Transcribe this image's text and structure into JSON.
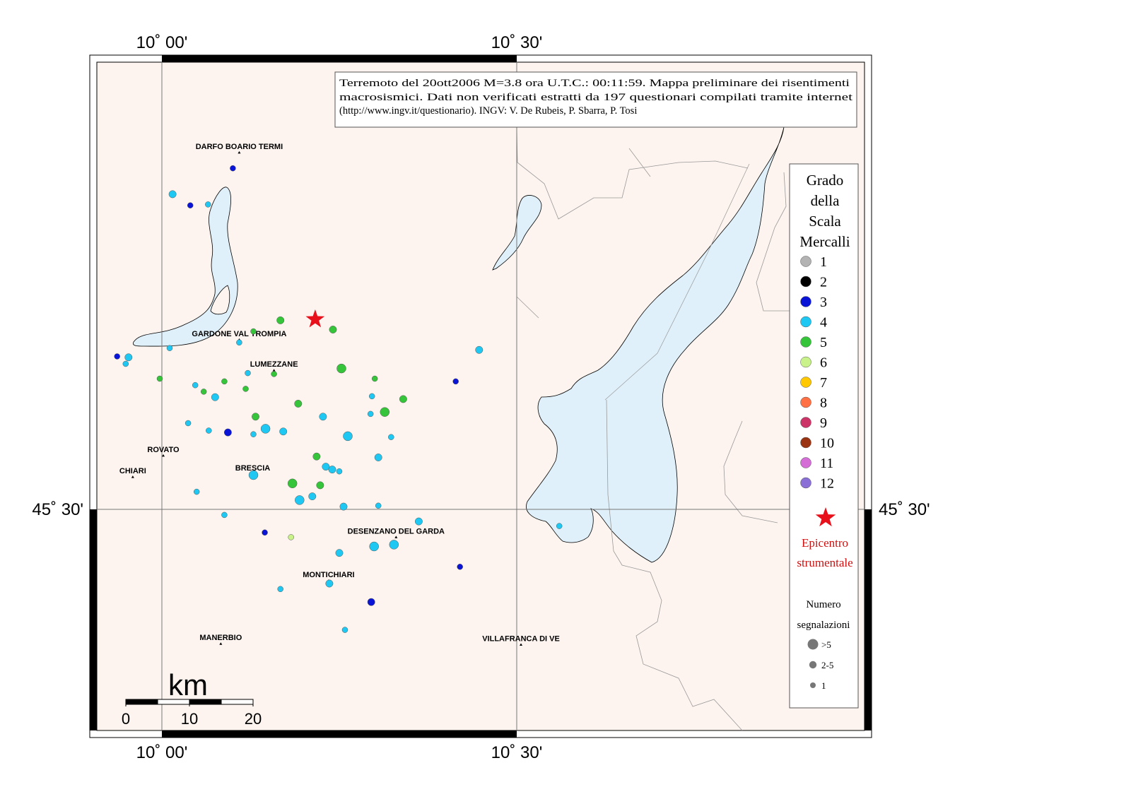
{
  "note_lines": [
    "Terremoto del 20ott2006 M=3.8 ora U.T.C.: 00:11:59.  Mappa preliminare dei risentimenti",
    "macrosismici.  Dati non verificati estratti da 197 questionari compilati tramite internet",
    "(http://www.ingv.it/questionario).  INGV: V.  De Rubeis, P.  Sbarra, P.  Tosi"
  ],
  "coords": {
    "lon_left": "10˚ 00'",
    "lon_right": "10˚ 30'",
    "lat": "45˚ 30'"
  },
  "towns": [
    {
      "name": "DARFO BOARIO TERMI",
      "lon": 10.109,
      "lat": 45.885
    },
    {
      "name": "GARDONE VAL TROMPIA",
      "lon": 10.109,
      "lat": 45.683
    },
    {
      "name": "LUMEZZANE",
      "lon": 10.158,
      "lat": 45.65
    },
    {
      "name": "ROVATO",
      "lon": 10.002,
      "lat": 45.558
    },
    {
      "name": "CHIARI",
      "lon": 9.959,
      "lat": 45.535
    },
    {
      "name": "BRESCIA",
      "lon": 10.128,
      "lat": 45.538
    },
    {
      "name": "DESENZANO DEL GARDA",
      "lon": 10.33,
      "lat": 45.47
    },
    {
      "name": "MONTICHIARI",
      "lon": 10.235,
      "lat": 45.423
    },
    {
      "name": "MANERBIO",
      "lon": 10.083,
      "lat": 45.355
    },
    {
      "name": "VILLAFRANCA DI VE",
      "lon": 10.506,
      "lat": 45.354
    }
  ],
  "epicenter": {
    "lon": 10.216,
    "lat": 45.705
  },
  "observations": [
    {
      "lon": 10.1,
      "lat": 45.868,
      "mcs": 3,
      "n": 1
    },
    {
      "lon": 10.015,
      "lat": 45.84,
      "mcs": 4,
      "n": 2
    },
    {
      "lon": 10.04,
      "lat": 45.828,
      "mcs": 3,
      "n": 1
    },
    {
      "lon": 10.065,
      "lat": 45.829,
      "mcs": 4,
      "n": 1
    },
    {
      "lon": 10.167,
      "lat": 45.704,
      "mcs": 5,
      "n": 2
    },
    {
      "lon": 10.129,
      "lat": 45.692,
      "mcs": 5,
      "n": 1
    },
    {
      "lon": 10.241,
      "lat": 45.694,
      "mcs": 5,
      "n": 2
    },
    {
      "lon": 10.109,
      "lat": 45.68,
      "mcs": 4,
      "n": 1
    },
    {
      "lon": 10.011,
      "lat": 45.674,
      "mcs": 4,
      "n": 1
    },
    {
      "lon": 9.937,
      "lat": 45.665,
      "mcs": 3,
      "n": 1
    },
    {
      "lon": 9.953,
      "lat": 45.664,
      "mcs": 4,
      "n": 2
    },
    {
      "lon": 9.949,
      "lat": 45.657,
      "mcs": 4,
      "n": 1
    },
    {
      "lon": 9.997,
      "lat": 45.641,
      "mcs": 5,
      "n": 1
    },
    {
      "lon": 10.047,
      "lat": 45.634,
      "mcs": 4,
      "n": 1
    },
    {
      "lon": 10.121,
      "lat": 45.647,
      "mcs": 4,
      "n": 1
    },
    {
      "lon": 10.158,
      "lat": 45.646,
      "mcs": 5,
      "n": 1
    },
    {
      "lon": 10.253,
      "lat": 45.652,
      "mcs": 5,
      "n": 3
    },
    {
      "lon": 10.088,
      "lat": 45.638,
      "mcs": 5,
      "n": 1
    },
    {
      "lon": 10.118,
      "lat": 45.63,
      "mcs": 5,
      "n": 1
    },
    {
      "lon": 10.059,
      "lat": 45.627,
      "mcs": 5,
      "n": 1
    },
    {
      "lon": 10.075,
      "lat": 45.621,
      "mcs": 4,
      "n": 2
    },
    {
      "lon": 10.192,
      "lat": 45.614,
      "mcs": 5,
      "n": 2
    },
    {
      "lon": 10.3,
      "lat": 45.641,
      "mcs": 5,
      "n": 1
    },
    {
      "lon": 10.296,
      "lat": 45.622,
      "mcs": 4,
      "n": 1
    },
    {
      "lon": 10.314,
      "lat": 45.605,
      "mcs": 5,
      "n": 3
    },
    {
      "lon": 10.34,
      "lat": 45.619,
      "mcs": 5,
      "n": 2
    },
    {
      "lon": 10.414,
      "lat": 45.638,
      "mcs": 3,
      "n": 1
    },
    {
      "lon": 10.447,
      "lat": 45.672,
      "mcs": 4,
      "n": 2
    },
    {
      "lon": 10.132,
      "lat": 45.6,
      "mcs": 5,
      "n": 2
    },
    {
      "lon": 10.037,
      "lat": 45.593,
      "mcs": 4,
      "n": 1
    },
    {
      "lon": 10.066,
      "lat": 45.585,
      "mcs": 4,
      "n": 1
    },
    {
      "lon": 10.093,
      "lat": 45.583,
      "mcs": 3,
      "n": 2
    },
    {
      "lon": 10.129,
      "lat": 45.581,
      "mcs": 4,
      "n": 1
    },
    {
      "lon": 10.146,
      "lat": 45.587,
      "mcs": 4,
      "n": 3
    },
    {
      "lon": 10.171,
      "lat": 45.584,
      "mcs": 4,
      "n": 2
    },
    {
      "lon": 10.227,
      "lat": 45.6,
      "mcs": 4,
      "n": 2
    },
    {
      "lon": 10.262,
      "lat": 45.579,
      "mcs": 4,
      "n": 3
    },
    {
      "lon": 10.294,
      "lat": 45.603,
      "mcs": 4,
      "n": 1
    },
    {
      "lon": 10.323,
      "lat": 45.578,
      "mcs": 4,
      "n": 1
    },
    {
      "lon": 10.218,
      "lat": 45.557,
      "mcs": 5,
      "n": 2
    },
    {
      "lon": 10.231,
      "lat": 45.546,
      "mcs": 4,
      "n": 2
    },
    {
      "lon": 10.24,
      "lat": 45.543,
      "mcs": 4,
      "n": 2
    },
    {
      "lon": 10.25,
      "lat": 45.541,
      "mcs": 4,
      "n": 1
    },
    {
      "lon": 10.305,
      "lat": 45.556,
      "mcs": 4,
      "n": 2
    },
    {
      "lon": 10.129,
      "lat": 45.537,
      "mcs": 4,
      "n": 3
    },
    {
      "lon": 10.184,
      "lat": 45.528,
      "mcs": 5,
      "n": 3
    },
    {
      "lon": 10.223,
      "lat": 45.526,
      "mcs": 5,
      "n": 2
    },
    {
      "lon": 10.049,
      "lat": 45.519,
      "mcs": 4,
      "n": 1
    },
    {
      "lon": 10.194,
      "lat": 45.51,
      "mcs": 4,
      "n": 3
    },
    {
      "lon": 10.212,
      "lat": 45.514,
      "mcs": 4,
      "n": 2
    },
    {
      "lon": 10.256,
      "lat": 45.503,
      "mcs": 4,
      "n": 2
    },
    {
      "lon": 10.305,
      "lat": 45.504,
      "mcs": 4,
      "n": 1
    },
    {
      "lon": 10.088,
      "lat": 45.494,
      "mcs": 4,
      "n": 1
    },
    {
      "lon": 10.145,
      "lat": 45.475,
      "mcs": 3,
      "n": 1
    },
    {
      "lon": 10.182,
      "lat": 45.47,
      "mcs": 6,
      "n": 1
    },
    {
      "lon": 10.362,
      "lat": 45.487,
      "mcs": 4,
      "n": 2
    },
    {
      "lon": 10.299,
      "lat": 45.46,
      "mcs": 4,
      "n": 3
    },
    {
      "lon": 10.327,
      "lat": 45.462,
      "mcs": 4,
      "n": 3
    },
    {
      "lon": 10.25,
      "lat": 45.453,
      "mcs": 4,
      "n": 2
    },
    {
      "lon": 10.42,
      "lat": 45.438,
      "mcs": 3,
      "n": 1
    },
    {
      "lon": 10.56,
      "lat": 45.482,
      "mcs": 4,
      "n": 1
    },
    {
      "lon": 10.236,
      "lat": 45.42,
      "mcs": 4,
      "n": 2
    },
    {
      "lon": 10.167,
      "lat": 45.414,
      "mcs": 4,
      "n": 1
    },
    {
      "lon": 10.295,
      "lat": 45.4,
      "mcs": 3,
      "n": 2
    },
    {
      "lon": 10.258,
      "lat": 45.37,
      "mcs": 4,
      "n": 1
    }
  ],
  "legend": {
    "title_lines": [
      "Grado",
      "della",
      "Scala",
      "Mercalli"
    ],
    "grades": [
      {
        "label": "1",
        "color": "#b3b3b3"
      },
      {
        "label": "2",
        "color": "#000000"
      },
      {
        "label": "3",
        "color": "#0a14d6"
      },
      {
        "label": "4",
        "color": "#1ec8f2"
      },
      {
        "label": "5",
        "color": "#35c43a"
      },
      {
        "label": "6",
        "color": "#c9f28a"
      },
      {
        "label": "7",
        "color": "#ffc800"
      },
      {
        "label": "8",
        "color": "#ff7044"
      },
      {
        "label": "9",
        "color": "#cc3366"
      },
      {
        "label": "10",
        "color": "#993311"
      },
      {
        "label": "11",
        "color": "#d46ed6"
      },
      {
        "label": "12",
        "color": "#8a6fd6"
      }
    ],
    "epicenter_lines": [
      "Epicentro",
      "strumentale"
    ],
    "count_title_lines": [
      "Numero",
      "segnalazioni"
    ],
    "count_classes": [
      {
        "label": ">5",
        "level": 3
      },
      {
        "label": "2-5",
        "level": 2
      },
      {
        "label": "1",
        "level": 1
      }
    ]
  },
  "scale_bar": {
    "unit": "km",
    "ticks": [
      "0",
      "10",
      "20"
    ]
  },
  "colors": {
    "land": "#fdf4ef",
    "water": "#dff0fa",
    "epicenter": "#e8101a",
    "epicenter_text": "#cc1111"
  }
}
